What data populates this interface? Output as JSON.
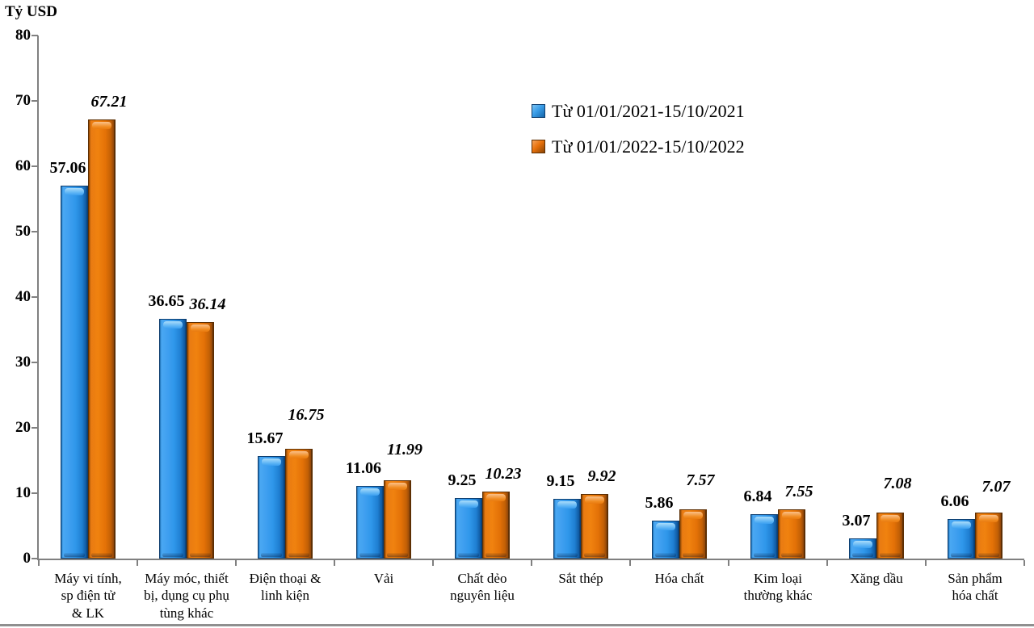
{
  "chart_data": {
    "type": "bar",
    "title": "Tỷ USD",
    "categories": [
      "Máy vi tính, sp điện tử & LK",
      "Máy móc, thiết bị, dụng cụ phụ tùng khác",
      "Điện thoại & linh kiện",
      "Vải",
      "Chất dẻo nguyên liệu",
      "Sắt thép",
      "Hóa chất",
      "Kim loại thường khác",
      "Xăng dầu",
      "Sản phẩm hóa chất"
    ],
    "category_lines": [
      [
        "Máy vi tính,",
        "sp điện tử",
        "& LK"
      ],
      [
        "Máy móc, thiết",
        "bị, dụng cụ phụ",
        "tùng khác"
      ],
      [
        "Điện thoại &",
        "linh kiện"
      ],
      [
        "Vải"
      ],
      [
        "Chất dẻo",
        "nguyên liệu"
      ],
      [
        "Sắt thép"
      ],
      [
        "Hóa chất"
      ],
      [
        "Kim loại",
        "thường khác"
      ],
      [
        "Xăng dầu"
      ],
      [
        "Sản phẩm",
        "hóa chất"
      ]
    ],
    "series": [
      {
        "name": "Từ 01/01/2021-15/10/2021",
        "color": "#2E9CE8",
        "values": [
          57.06,
          36.65,
          15.67,
          11.06,
          9.25,
          9.15,
          5.86,
          6.84,
          3.07,
          6.06
        ]
      },
      {
        "name": "Từ 01/01/2022-15/10/2022",
        "color": "#E8700A",
        "values": [
          67.21,
          36.14,
          16.75,
          11.99,
          10.23,
          9.92,
          7.57,
          7.55,
          7.08,
          7.07
        ]
      }
    ],
    "ylim": [
      0,
      80
    ],
    "ytick_step": 10,
    "yticks": [
      0,
      10,
      20,
      30,
      40,
      50,
      60,
      70,
      80
    ],
    "grid": false,
    "legend_position": "inside-top",
    "axis_color": "#808080",
    "value_label_decimals": 2
  }
}
